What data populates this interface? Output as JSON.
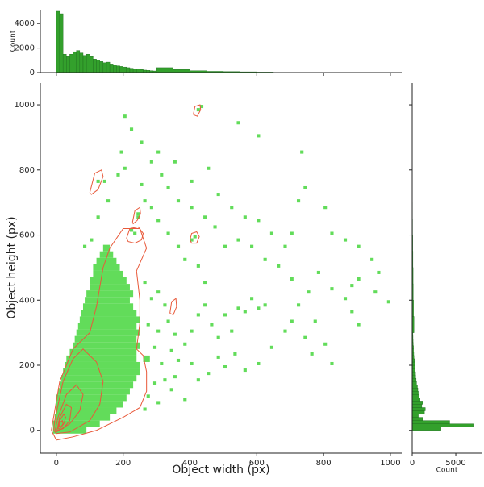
{
  "chart_data": [
    {
      "type": "hist2d",
      "xlabel": "Object width (px)",
      "ylabel": "Object height (px)",
      "xlim": [
        -48,
        1034
      ],
      "ylim": [
        -70,
        1067
      ],
      "xticks": [
        0,
        200,
        400,
        600,
        800,
        1000
      ],
      "yticks": [
        0,
        200,
        400,
        600,
        800,
        1000
      ],
      "color": "#62dc5a",
      "row_height": 20,
      "point_size": 10,
      "rows": [
        {
          "y": -10,
          "spans": [
            [
              -10,
              90
            ]
          ]
        },
        {
          "y": 10,
          "spans": [
            [
              -10,
              130
            ]
          ]
        },
        {
          "y": 30,
          "spans": [
            [
              -5,
              160
            ]
          ]
        },
        {
          "y": 50,
          "spans": [
            [
              0,
              180
            ]
          ]
        },
        {
          "y": 70,
          "spans": [
            [
              0,
              200
            ]
          ]
        },
        {
          "y": 90,
          "spans": [
            [
              0,
              210
            ]
          ]
        },
        {
          "y": 110,
          "spans": [
            [
              5,
              220
            ]
          ]
        },
        {
          "y": 130,
          "spans": [
            [
              10,
              230
            ]
          ]
        },
        {
          "y": 150,
          "spans": [
            [
              15,
              240
            ]
          ]
        },
        {
          "y": 170,
          "spans": [
            [
              20,
              250
            ]
          ]
        },
        {
          "y": 190,
          "spans": [
            [
              25,
              250
            ]
          ]
        },
        {
          "y": 210,
          "spans": [
            [
              30,
              240
            ],
            [
              260,
              280
            ]
          ]
        },
        {
          "y": 230,
          "spans": [
            [
              40,
              240
            ]
          ]
        },
        {
          "y": 250,
          "spans": [
            [
              50,
              250
            ]
          ]
        },
        {
          "y": 270,
          "spans": [
            [
              55,
              240
            ]
          ]
        },
        {
          "y": 290,
          "spans": [
            [
              60,
              250
            ]
          ]
        },
        {
          "y": 310,
          "spans": [
            [
              65,
              240
            ]
          ]
        },
        {
          "y": 330,
          "spans": [
            [
              70,
              250
            ]
          ]
        },
        {
          "y": 350,
          "spans": [
            [
              75,
              240
            ]
          ]
        },
        {
          "y": 370,
          "spans": [
            [
              80,
              230
            ]
          ]
        },
        {
          "y": 390,
          "spans": [
            [
              85,
              220
            ]
          ]
        },
        {
          "y": 410,
          "spans": [
            [
              90,
              230
            ]
          ]
        },
        {
          "y": 430,
          "spans": [
            [
              100,
              220
            ]
          ]
        },
        {
          "y": 450,
          "spans": [
            [
              100,
              210
            ]
          ]
        },
        {
          "y": 470,
          "spans": [
            [
              110,
              200
            ]
          ]
        },
        {
          "y": 490,
          "spans": [
            [
              110,
              190
            ]
          ]
        },
        {
          "y": 510,
          "spans": [
            [
              120,
              180
            ]
          ]
        },
        {
          "y": 530,
          "spans": [
            [
              130,
              170
            ]
          ]
        },
        {
          "y": 550,
          "spans": [
            [
              140,
              160
            ]
          ]
        }
      ],
      "points": {
        "x": [
          260,
          280,
          300,
          320,
          300,
          330,
          350,
          270,
          290,
          310,
          340,
          360,
          380,
          400,
          420,
          440,
          460,
          480,
          500,
          520,
          540,
          560,
          580,
          600,
          620,
          400,
          420,
          450,
          480,
          500,
          530,
          560,
          600,
          640,
          680,
          700,
          740,
          760,
          800,
          270,
          300,
          320,
          340,
          380,
          260,
          290,
          350,
          440,
          420,
          380,
          360,
          330,
          300,
          280,
          260,
          250,
          200,
          190,
          180,
          150,
          120,
          100,
          80,
          140,
          220,
          250,
          300,
          350,
          400,
          450,
          480,
          520,
          560,
          600,
          640,
          680,
          700,
          720,
          740,
          800,
          820,
          860,
          900,
          940,
          960,
          900,
          880,
          860,
          820,
          780,
          750,
          720,
          700,
          660,
          620,
          580,
          540,
          500,
          470,
          440,
          400,
          360,
          330,
          310,
          280,
          420,
          430,
          240,
          240,
          120,
          540,
          600,
          730,
          950,
          990,
          880,
          770,
          820,
          900,
          200,
          400,
          410,
          230,
          220
        ],
        "y": [
          450,
          400,
          420,
          380,
          300,
          330,
          290,
          320,
          250,
          200,
          240,
          210,
          260,
          300,
          350,
          380,
          320,
          280,
          350,
          300,
          370,
          360,
          400,
          370,
          380,
          200,
          150,
          170,
          220,
          190,
          230,
          180,
          200,
          250,
          300,
          330,
          280,
          230,
          260,
          100,
          80,
          150,
          120,
          90,
          60,
          140,
          160,
          450,
          500,
          520,
          560,
          600,
          640,
          680,
          700,
          750,
          800,
          850,
          780,
          700,
          650,
          580,
          560,
          760,
          920,
          880,
          850,
          820,
          760,
          800,
          720,
          680,
          650,
          640,
          600,
          560,
          600,
          700,
          740,
          680,
          600,
          580,
          560,
          520,
          480,
          460,
          440,
          400,
          430,
          480,
          420,
          380,
          460,
          500,
          520,
          560,
          580,
          560,
          620,
          650,
          680,
          700,
          740,
          780,
          820,
          980,
          990,
          660,
          650,
          760,
          940,
          900,
          850,
          420,
          390,
          360,
          330,
          200,
          320,
          960,
          580,
          590,
          600,
          610
        ]
      },
      "contour_color": "#e8593a",
      "contours": [
        {
          "x": [
            -15,
            10,
            50,
            100,
            120,
            140,
            160,
            200,
            250,
            270,
            240,
            250,
            250,
            240,
            260,
            270,
            270,
            250,
            200,
            120,
            50,
            0,
            -15
          ],
          "y": [
            0,
            150,
            250,
            300,
            380,
            500,
            560,
            620,
            620,
            560,
            490,
            400,
            330,
            250,
            230,
            180,
            120,
            70,
            40,
            0,
            -20,
            -30,
            0
          ]
        },
        {
          "x": [
            -8,
            -5,
            20,
            50,
            80,
            120,
            140,
            130,
            100,
            40,
            0,
            -8
          ],
          "y": [
            0,
            30,
            150,
            220,
            250,
            210,
            150,
            80,
            30,
            -5,
            -10,
            0
          ]
        },
        {
          "x": [
            -4,
            5,
            30,
            60,
            80,
            70,
            40,
            0,
            -4
          ],
          "y": [
            0,
            40,
            110,
            140,
            110,
            60,
            20,
            -5,
            0
          ]
        },
        {
          "x": [
            2,
            10,
            30,
            45,
            40,
            20,
            2
          ],
          "y": [
            0,
            40,
            80,
            70,
            30,
            5,
            0
          ]
        },
        {
          "x": [
            5,
            10,
            22,
            28,
            22,
            10,
            5
          ],
          "y": [
            5,
            30,
            50,
            40,
            20,
            5,
            5
          ]
        },
        {
          "x": [
            8,
            12,
            18,
            20,
            15,
            8
          ],
          "y": [
            10,
            25,
            30,
            20,
            12,
            10
          ]
        },
        {
          "x": [
            100,
            115,
            135,
            140,
            125,
            105,
            100
          ],
          "y": [
            730,
            790,
            800,
            780,
            740,
            725,
            730
          ]
        },
        {
          "x": [
            228,
            235,
            250,
            252,
            242,
            230,
            228
          ],
          "y": [
            640,
            675,
            685,
            665,
            645,
            635,
            640
          ]
        },
        {
          "x": [
            410,
            415,
            430,
            432,
            422,
            410
          ],
          "y": [
            970,
            995,
            1000,
            985,
            965,
            970
          ]
        },
        {
          "x": [
            210,
            220,
            245,
            260,
            255,
            235,
            215,
            210
          ],
          "y": [
            590,
            620,
            625,
            605,
            585,
            575,
            580,
            590
          ]
        },
        {
          "x": [
            400,
            405,
            420,
            428,
            420,
            405,
            400
          ],
          "y": [
            585,
            605,
            610,
            595,
            575,
            575,
            585
          ]
        },
        {
          "x": [
            340,
            345,
            358,
            360,
            350,
            340
          ],
          "y": [
            360,
            395,
            405,
            380,
            355,
            360
          ]
        }
      ]
    },
    {
      "type": "histogram",
      "orientation": "vertical",
      "ylabel": "Count",
      "ylim": [
        0,
        5130
      ],
      "yticks": [
        0,
        2000,
        4000
      ],
      "color": "#33a02c",
      "edgecolor": "#1e6b1e",
      "bins": [
        0,
        10,
        20,
        30,
        40,
        50,
        60,
        70,
        80,
        90,
        100,
        110,
        120,
        130,
        140,
        150,
        160,
        170,
        180,
        190,
        200,
        210,
        220,
        230,
        240,
        250,
        260,
        270,
        280,
        290,
        300,
        350,
        400,
        450,
        500,
        550,
        600,
        650,
        700,
        750,
        800,
        850,
        900,
        950,
        1000
      ],
      "values": [
        5000,
        4800,
        1500,
        1300,
        1500,
        1700,
        1800,
        1600,
        1400,
        1500,
        1300,
        1100,
        1000,
        900,
        800,
        850,
        700,
        600,
        550,
        500,
        450,
        400,
        350,
        300,
        300,
        250,
        200,
        180,
        150,
        130,
        400,
        250,
        150,
        100,
        80,
        60,
        40,
        20,
        15,
        10,
        8,
        5,
        3,
        2
      ]
    },
    {
      "type": "histogram",
      "orientation": "horizontal",
      "xlabel": "Count",
      "xlim": [
        0,
        8050
      ],
      "xticks": [
        0,
        5000
      ],
      "color": "#33a02c",
      "edgecolor": "#1e6b1e",
      "bins": [
        0,
        10,
        20,
        30,
        40,
        50,
        60,
        70,
        80,
        90,
        100,
        110,
        120,
        130,
        140,
        150,
        160,
        170,
        180,
        190,
        200,
        210,
        220,
        230,
        240,
        250,
        260,
        270,
        280,
        290,
        300,
        350,
        400,
        450,
        500,
        550,
        600,
        650,
        700,
        750,
        800,
        850,
        900,
        950,
        1000
      ],
      "values": [
        3300,
        7000,
        4300,
        1200,
        700,
        1400,
        1500,
        1100,
        1200,
        900,
        800,
        700,
        650,
        600,
        500,
        450,
        400,
        380,
        350,
        300,
        300,
        250,
        200,
        180,
        150,
        150,
        120,
        100,
        90,
        80,
        200,
        150,
        120,
        100,
        80,
        60,
        40,
        30,
        20,
        15,
        10,
        8,
        5,
        3
      ]
    }
  ]
}
